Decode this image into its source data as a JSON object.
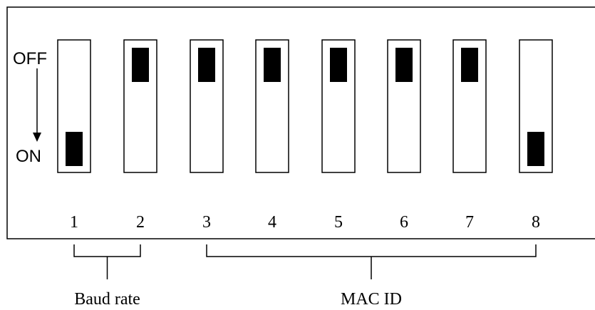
{
  "state_labels": {
    "off": "OFF",
    "on": "ON"
  },
  "switches": [
    {
      "number": "1",
      "state": "on"
    },
    {
      "number": "2",
      "state": "off"
    },
    {
      "number": "3",
      "state": "off"
    },
    {
      "number": "4",
      "state": "off"
    },
    {
      "number": "5",
      "state": "off"
    },
    {
      "number": "6",
      "state": "off"
    },
    {
      "number": "7",
      "state": "off"
    },
    {
      "number": "8",
      "state": "on"
    }
  ],
  "groups": [
    {
      "label": "Baud rate",
      "switches": [
        "1",
        "2"
      ]
    },
    {
      "label": "MAC ID",
      "switches": [
        "3",
        "4",
        "5",
        "6",
        "7",
        "8"
      ]
    }
  ]
}
